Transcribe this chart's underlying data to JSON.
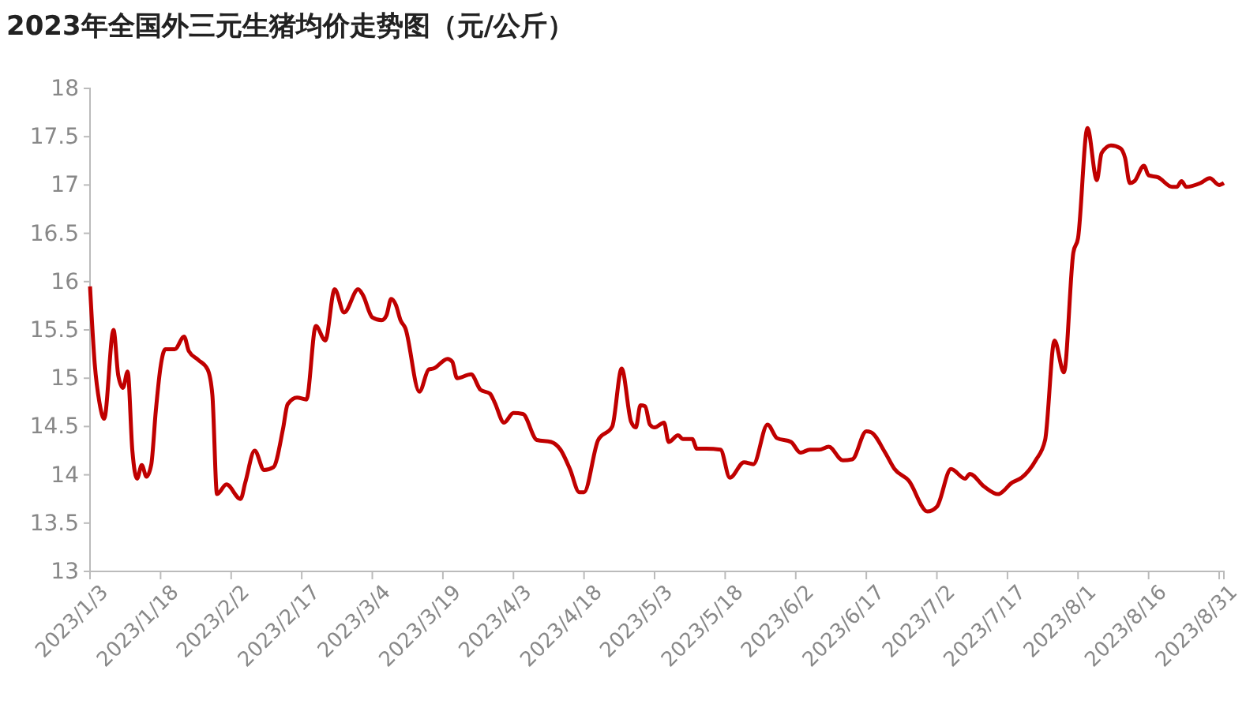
{
  "chart_data": {
    "type": "line",
    "title": "2023年全国外三元生猪均价走势图（元/公斤）",
    "x": [
      "2023-01-03",
      "2023-01-04",
      "2023-01-05",
      "2023-01-06",
      "2023-01-08",
      "2023-01-09",
      "2023-01-10",
      "2023-01-11",
      "2023-01-12",
      "2023-01-13",
      "2023-01-14",
      "2023-01-15",
      "2023-01-16",
      "2023-01-17",
      "2023-01-18",
      "2023-01-19",
      "2023-01-21",
      "2023-01-23",
      "2023-01-24",
      "2023-01-26",
      "2023-01-28",
      "2023-01-29",
      "2023-01-30",
      "2023-02-01",
      "2023-02-04",
      "2023-02-05",
      "2023-02-07",
      "2023-02-09",
      "2023-02-11",
      "2023-02-13",
      "2023-02-14",
      "2023-02-16",
      "2023-02-18",
      "2023-02-20",
      "2023-02-22",
      "2023-02-24",
      "2023-02-26",
      "2023-03-01",
      "2023-03-02",
      "2023-03-04",
      "2023-03-06",
      "2023-03-07",
      "2023-03-08",
      "2023-03-09",
      "2023-03-10",
      "2023-03-11",
      "2023-03-14",
      "2023-03-16",
      "2023-03-17",
      "2023-03-20",
      "2023-03-21",
      "2023-03-22",
      "2023-03-25",
      "2023-03-27",
      "2023-03-29",
      "2023-03-30",
      "2023-04-01",
      "2023-04-03",
      "2023-04-05",
      "2023-04-08",
      "2023-04-11",
      "2023-04-13",
      "2023-04-15",
      "2023-04-17",
      "2023-04-18",
      "2023-04-21",
      "2023-04-24",
      "2023-04-26",
      "2023-04-28",
      "2023-04-29",
      "2023-04-30",
      "2023-05-01",
      "2023-05-02",
      "2023-05-03",
      "2023-05-05",
      "2023-05-06",
      "2023-05-08",
      "2023-05-09",
      "2023-05-11",
      "2023-05-12",
      "2023-05-14",
      "2023-05-17",
      "2023-05-19",
      "2023-05-22",
      "2023-05-24",
      "2023-05-27",
      "2023-05-29",
      "2023-06-01",
      "2023-06-03",
      "2023-06-05",
      "2023-06-07",
      "2023-06-09",
      "2023-06-12",
      "2023-06-14",
      "2023-06-17",
      "2023-06-18",
      "2023-06-21",
      "2023-06-23",
      "2023-06-26",
      "2023-06-30",
      "2023-07-02",
      "2023-07-05",
      "2023-07-08",
      "2023-07-09",
      "2023-07-12",
      "2023-07-15",
      "2023-07-18",
      "2023-07-20",
      "2023-07-23",
      "2023-07-25",
      "2023-07-27",
      "2023-07-29",
      "2023-07-31",
      "2023-08-01",
      "2023-08-03",
      "2023-08-05",
      "2023-08-06",
      "2023-08-08",
      "2023-08-10",
      "2023-08-11",
      "2023-08-12",
      "2023-08-13",
      "2023-08-15",
      "2023-08-16",
      "2023-08-18",
      "2023-08-21",
      "2023-08-22",
      "2023-08-23",
      "2023-08-24",
      "2023-08-27",
      "2023-08-29",
      "2023-08-31",
      "2023-09-01"
    ],
    "series": [
      {
        "color": "#c00000",
        "values": [
          15.95,
          15.15,
          14.75,
          14.58,
          15.5,
          15.03,
          14.9,
          15.07,
          14.25,
          13.96,
          14.1,
          13.98,
          14.1,
          14.67,
          15.12,
          15.3,
          15.3,
          15.43,
          15.28,
          15.19,
          15.09,
          14.83,
          13.8,
          13.9,
          13.75,
          13.92,
          14.25,
          14.05,
          14.08,
          14.47,
          14.73,
          14.8,
          14.78,
          15.54,
          15.39,
          15.92,
          15.68,
          15.92,
          15.86,
          15.63,
          15.6,
          15.65,
          15.82,
          15.76,
          15.6,
          15.52,
          14.86,
          15.09,
          15.1,
          15.2,
          15.17,
          15.0,
          15.04,
          14.88,
          14.84,
          14.75,
          14.54,
          14.64,
          14.63,
          14.36,
          14.34,
          14.26,
          14.06,
          13.82,
          13.82,
          14.36,
          14.5,
          15.1,
          14.55,
          14.49,
          14.72,
          14.71,
          14.52,
          14.49,
          14.54,
          14.34,
          14.41,
          14.37,
          14.37,
          14.27,
          14.27,
          14.26,
          13.97,
          14.13,
          14.11,
          14.52,
          14.38,
          14.34,
          14.23,
          14.26,
          14.26,
          14.29,
          14.15,
          14.16,
          14.45,
          14.44,
          14.23,
          14.06,
          13.94,
          13.62,
          13.67,
          14.06,
          13.96,
          14.01,
          13.88,
          13.8,
          13.92,
          13.97,
          14.15,
          14.36,
          15.39,
          15.06,
          16.3,
          16.45,
          17.59,
          17.05,
          17.33,
          17.41,
          17.38,
          17.28,
          17.02,
          17.04,
          17.2,
          17.1,
          17.08,
          16.98,
          16.98,
          17.04,
          16.98,
          17.02,
          17.07,
          17.0,
          17.02
        ]
      }
    ],
    "xlim": [
      "2023-01-03",
      "2023-09-01"
    ],
    "xticks": [
      {
        "value": "2023-01-03",
        "label": "2023/1/3"
      },
      {
        "value": "2023-01-18",
        "label": "2023/1/18"
      },
      {
        "value": "2023-02-02",
        "label": "2023/2/2"
      },
      {
        "value": "2023-02-17",
        "label": "2023/2/17"
      },
      {
        "value": "2023-03-04",
        "label": "2023/3/4"
      },
      {
        "value": "2023-03-19",
        "label": "2023/3/19"
      },
      {
        "value": "2023-04-03",
        "label": "2023/4/3"
      },
      {
        "value": "2023-04-18",
        "label": "2023/4/18"
      },
      {
        "value": "2023-05-03",
        "label": "2023/5/3"
      },
      {
        "value": "2023-05-18",
        "label": "2023/5/18"
      },
      {
        "value": "2023-06-02",
        "label": "2023/6/2"
      },
      {
        "value": "2023-06-17",
        "label": "2023/6/17"
      },
      {
        "value": "2023-07-02",
        "label": "2023/7/2"
      },
      {
        "value": "2023-07-17",
        "label": "2023/7/17"
      },
      {
        "value": "2023-08-01",
        "label": "2023/8/1"
      },
      {
        "value": "2023-08-16",
        "label": "2023/8/16"
      },
      {
        "value": "2023-08-31",
        "label": "2023/8/31"
      }
    ],
    "ylim": [
      13,
      18
    ],
    "yticks": [
      13,
      13.5,
      14,
      14.5,
      15,
      15.5,
      16,
      16.5,
      17,
      17.5,
      18
    ],
    "grid": false,
    "marker": "none",
    "line_style": "solid"
  }
}
